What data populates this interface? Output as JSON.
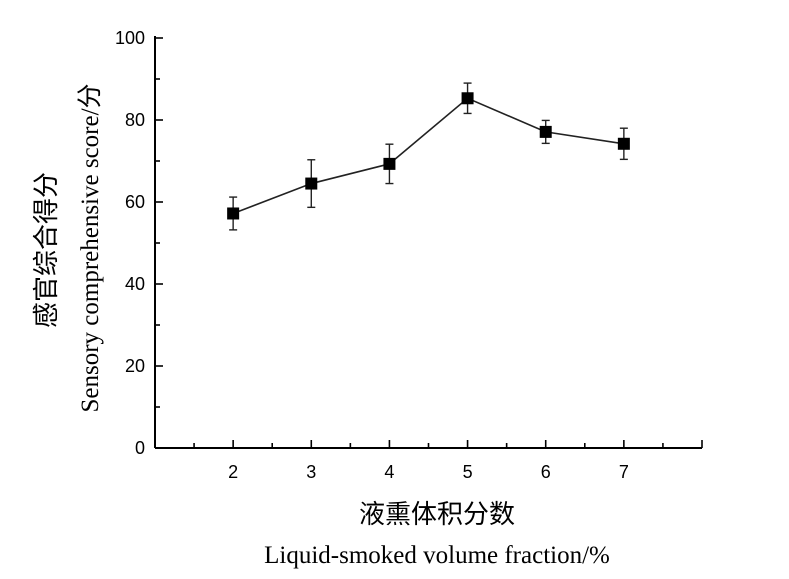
{
  "chart_data": {
    "type": "line",
    "x": [
      2,
      3,
      4,
      5,
      6,
      7
    ],
    "series": [
      {
        "values": [
          57.2,
          64.5,
          69.3,
          85.3,
          77.1,
          74.2
        ],
        "error": [
          4.0,
          5.8,
          4.8,
          3.7,
          2.8,
          3.8
        ],
        "marker": "square",
        "color": "#000000"
      }
    ],
    "xlim": [
      1,
      8
    ],
    "ylim": [
      0,
      100
    ],
    "x_ticks": [
      2,
      3,
      4,
      5,
      6,
      7
    ],
    "y_ticks": [
      0,
      20,
      40,
      60,
      80,
      100
    ],
    "xlabel_cn": "液熏体积分数",
    "xlabel_en": "Liquid-smoked volume fraction/%",
    "ylabel_cn": "感官综合得分",
    "ylabel_en": "Sensory comprehensive score/分",
    "grid": false
  }
}
